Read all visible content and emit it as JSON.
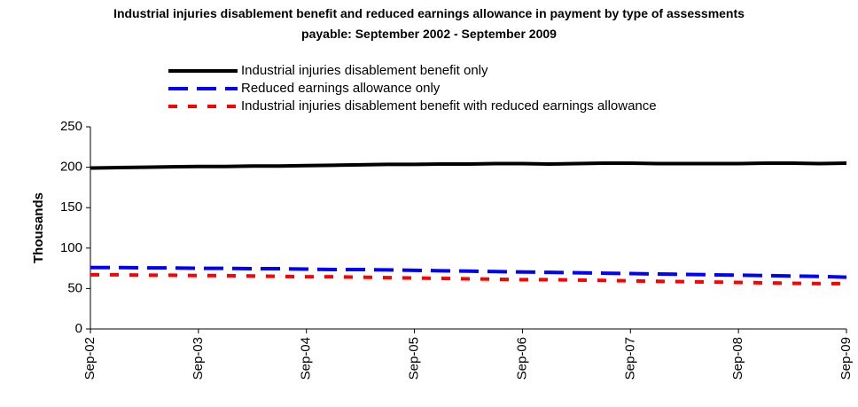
{
  "chart_data": {
    "type": "line",
    "title": "Industrial injuries disablement benefit and reduced earnings allowance in payment by type of assessments payable: September 2002 - September 2009",
    "y_label": "Thousands",
    "categories": [
      "Sep-02",
      null,
      null,
      null,
      "Sep-03",
      null,
      null,
      null,
      "Sep-04",
      null,
      null,
      null,
      "Sep-05",
      null,
      null,
      null,
      "Sep-06",
      null,
      null,
      null,
      "Sep-07",
      null,
      null,
      null,
      "Sep-08",
      null,
      null,
      null,
      "Sep-09"
    ],
    "series": [
      {
        "name": "Industrial injuries disablement benefit only",
        "color": "#000000",
        "dash": "solid",
        "values": [
          199,
          199.5,
          200,
          200.5,
          201,
          201,
          201.5,
          201.5,
          202,
          202.5,
          203,
          203.5,
          203.5,
          204,
          204,
          204.5,
          204.5,
          204,
          204.5,
          205,
          205,
          204.5,
          204.5,
          204.5,
          204.5,
          205,
          205,
          204.5,
          205
        ]
      },
      {
        "name": "Reduced earnings allowance only",
        "color": "#0000ff",
        "dash": "long",
        "values": [
          76,
          76,
          75.5,
          75.5,
          75,
          75,
          74.5,
          74.5,
          74,
          73.5,
          73.5,
          73,
          72.5,
          72,
          71.5,
          71,
          70.5,
          70,
          69.5,
          69,
          68.5,
          68,
          67.5,
          67,
          66.5,
          66,
          65.5,
          65,
          64
        ]
      },
      {
        "name": "Industrial injuries disablement benefit with reduced earnings allowance",
        "color": "#ff0000",
        "dash": "short",
        "values": [
          67,
          67,
          66.5,
          66.5,
          66,
          66,
          65.5,
          65,
          64.5,
          64.5,
          64,
          63.5,
          63,
          62.5,
          62,
          61.5,
          61,
          61,
          60.5,
          60,
          59.5,
          59,
          58.5,
          58,
          57.5,
          57,
          56.5,
          56,
          56
        ]
      }
    ],
    "ylim": [
      0,
      250
    ],
    "yticks": [
      0,
      50,
      100,
      150,
      200,
      250
    ],
    "legend": "top"
  }
}
